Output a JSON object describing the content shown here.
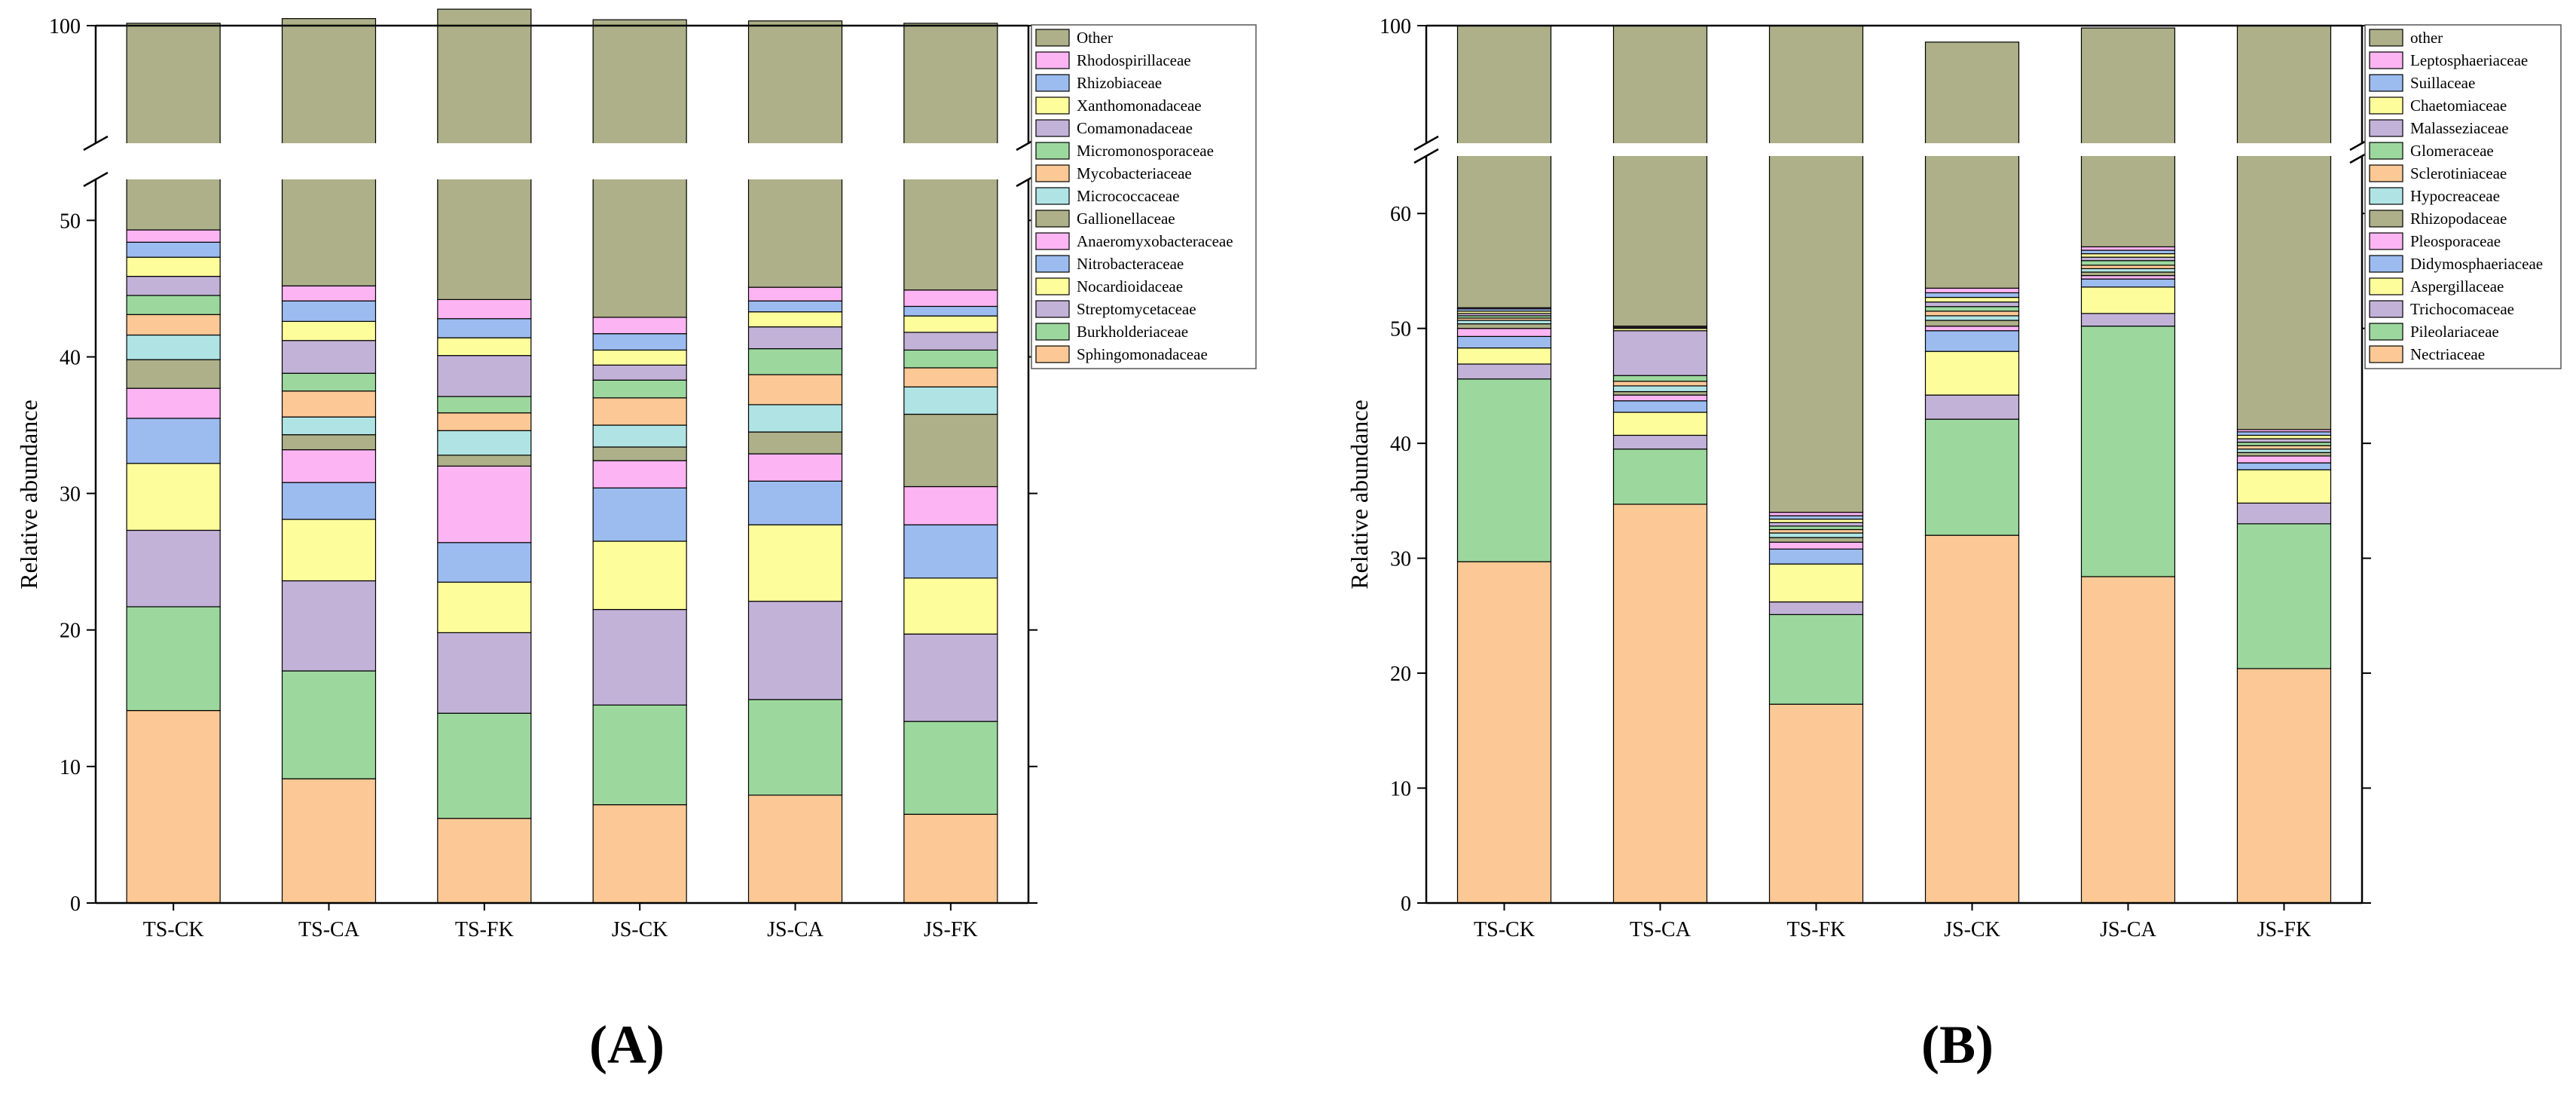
{
  "figure": {
    "panel_labels": [
      "(A)",
      "(B)"
    ]
  },
  "chart_data": [
    {
      "type": "bar",
      "stacked": true,
      "broken_axis": true,
      "panel_label": "(A)",
      "ylabel": "Relative abundance",
      "xlabel": "",
      "categories": [
        "TS-CK",
        "TS-CA",
        "TS-FK",
        "JS-CK",
        "JS-CA",
        "JS-FK"
      ],
      "ylim_lower": [
        0,
        53
      ],
      "ylim_upper": [
        90,
        100
      ],
      "ticks_lower": [
        0,
        10,
        20,
        30,
        40,
        50
      ],
      "ticks_upper": [
        100
      ],
      "tick_labels_lower": [
        "0",
        "10",
        "20",
        "30",
        "40",
        "50"
      ],
      "tick_labels_upper": [
        "100"
      ],
      "legend_position": "right",
      "series": [
        {
          "name": "Sphingomonadaceae",
          "color": "#FCC895",
          "values": [
            14.1,
            9.1,
            6.2,
            7.2,
            7.9,
            6.5
          ]
        },
        {
          "name": "Burkholderiaceae",
          "color": "#9CD89E",
          "values": [
            7.6,
            7.9,
            7.7,
            7.3,
            7.0,
            6.8
          ]
        },
        {
          "name": "Streptomycetaceae",
          "color": "#C3B2D8",
          "values": [
            5.6,
            6.6,
            5.9,
            7.0,
            7.2,
            6.4
          ]
        },
        {
          "name": "Nocardioidaceae",
          "color": "#FEFD9C",
          "values": [
            4.9,
            4.5,
            3.7,
            5.0,
            5.6,
            4.1
          ]
        },
        {
          "name": "Nitrobacteraceae",
          "color": "#9CBCF0",
          "values": [
            3.3,
            2.7,
            2.9,
            3.9,
            3.2,
            3.9
          ]
        },
        {
          "name": "Anaeromyxobacteraceae",
          "color": "#FCB4F2",
          "values": [
            2.2,
            2.4,
            5.6,
            2.0,
            2.0,
            2.8
          ]
        },
        {
          "name": "Gallionellaceae",
          "color": "#ADB088",
          "values": [
            2.1,
            1.1,
            0.8,
            1.0,
            1.6,
            5.3
          ]
        },
        {
          "name": "Micrococcaceae",
          "color": "#B0E4E4",
          "values": [
            1.8,
            1.3,
            1.8,
            1.6,
            2.0,
            2.0
          ]
        },
        {
          "name": "Mycobacteriaceae",
          "color": "#FCC895",
          "values": [
            1.5,
            1.9,
            1.3,
            2.0,
            2.2,
            1.4
          ]
        },
        {
          "name": "Micromonosporaceae",
          "color": "#9CD89E",
          "values": [
            1.4,
            1.3,
            1.2,
            1.3,
            1.9,
            1.3
          ]
        },
        {
          "name": "Comamonadaceae",
          "color": "#C3B2D8",
          "values": [
            1.4,
            2.4,
            3.0,
            1.1,
            1.6,
            1.3
          ]
        },
        {
          "name": "Xanthomonadaceae",
          "color": "#FEFD9C",
          "values": [
            1.4,
            1.4,
            1.3,
            1.1,
            1.1,
            1.2
          ]
        },
        {
          "name": "Rhizobiaceae",
          "color": "#9CBCF0",
          "values": [
            1.1,
            1.5,
            1.4,
            1.2,
            0.8,
            0.7
          ]
        },
        {
          "name": "Rhodospirillaceae",
          "color": "#FCB4F2",
          "values": [
            0.9,
            1.1,
            1.4,
            1.2,
            1.0,
            1.2
          ]
        },
        {
          "name": "Other",
          "color": "#ADB088",
          "values": [
            50.9,
            55.4,
            57.2,
            57.6,
            55.3,
            55.3
          ]
        }
      ]
    },
    {
      "type": "bar",
      "stacked": true,
      "broken_axis": true,
      "panel_label": "(B)",
      "ylabel": "Relative abundance",
      "xlabel": "",
      "categories": [
        "TS-CK",
        "TS-CA",
        "TS-FK",
        "JS-CK",
        "JS-CA",
        "JS-FK"
      ],
      "ylim_lower": [
        0,
        65
      ],
      "ylim_upper": [
        90,
        100
      ],
      "ticks_lower": [
        0,
        10,
        20,
        30,
        40,
        50,
        60
      ],
      "ticks_upper": [
        100
      ],
      "tick_labels_lower": [
        "0",
        "10",
        "20",
        "30",
        "40",
        "50",
        "60"
      ],
      "tick_labels_upper": [
        "100"
      ],
      "legend_position": "right",
      "series": [
        {
          "name": "Nectriaceae",
          "color": "#FCC895",
          "values": [
            29.7,
            34.7,
            17.3,
            32.0,
            28.4,
            20.4
          ]
        },
        {
          "name": "Pileolariaceae",
          "color": "#9CD89E",
          "values": [
            15.9,
            4.8,
            7.8,
            10.1,
            21.8,
            12.6
          ]
        },
        {
          "name": "Trichocomaceae",
          "color": "#C3B2D8",
          "values": [
            1.3,
            1.2,
            1.1,
            2.1,
            1.1,
            1.8
          ]
        },
        {
          "name": "Aspergillaceae",
          "color": "#FEFD9C",
          "values": [
            1.4,
            2.0,
            3.3,
            3.8,
            2.3,
            2.9
          ]
        },
        {
          "name": "Didymosphaeriaceae",
          "color": "#9CBCF0",
          "values": [
            1.0,
            1.0,
            1.3,
            1.8,
            0.7,
            0.6
          ]
        },
        {
          "name": "Pleosporaceae",
          "color": "#FCB4F2",
          "values": [
            0.7,
            0.5,
            0.6,
            0.4,
            0.3,
            0.6
          ]
        },
        {
          "name": "Rhizopodaceae",
          "color": "#ADB088",
          "values": [
            0.4,
            0.3,
            0.4,
            0.5,
            0.3,
            0.3
          ]
        },
        {
          "name": "Hypocreaceae",
          "color": "#B0E4E4",
          "values": [
            0.3,
            0.5,
            0.4,
            0.4,
            0.3,
            0.3
          ]
        },
        {
          "name": "Sclerotiniaceae",
          "color": "#FCC895",
          "values": [
            0.2,
            0.4,
            0.3,
            0.4,
            0.3,
            0.3
          ]
        },
        {
          "name": "Glomeraceae",
          "color": "#9CD89E",
          "values": [
            0.2,
            0.5,
            0.3,
            0.4,
            0.4,
            0.3
          ]
        },
        {
          "name": "Malasseziaceae",
          "color": "#C3B2D8",
          "values": [
            0.2,
            3.9,
            0.3,
            0.4,
            0.3,
            0.3
          ]
        },
        {
          "name": "Chaetomiaceae",
          "color": "#FEFD9C",
          "values": [
            0.2,
            0.2,
            0.3,
            0.4,
            0.3,
            0.3
          ]
        },
        {
          "name": "Suillaceae",
          "color": "#9CBCF0",
          "values": [
            0.2,
            0.1,
            0.3,
            0.4,
            0.3,
            0.3
          ]
        },
        {
          "name": "Leptosphaeriaceae",
          "color": "#FCB4F2",
          "values": [
            0.1,
            0.1,
            0.3,
            0.4,
            0.3,
            0.2
          ]
        },
        {
          "name": "other",
          "color": "#ADB088",
          "values": [
            48.2,
            49.8,
            66.0,
            45.1,
            42.7,
            58.8
          ]
        }
      ]
    }
  ]
}
